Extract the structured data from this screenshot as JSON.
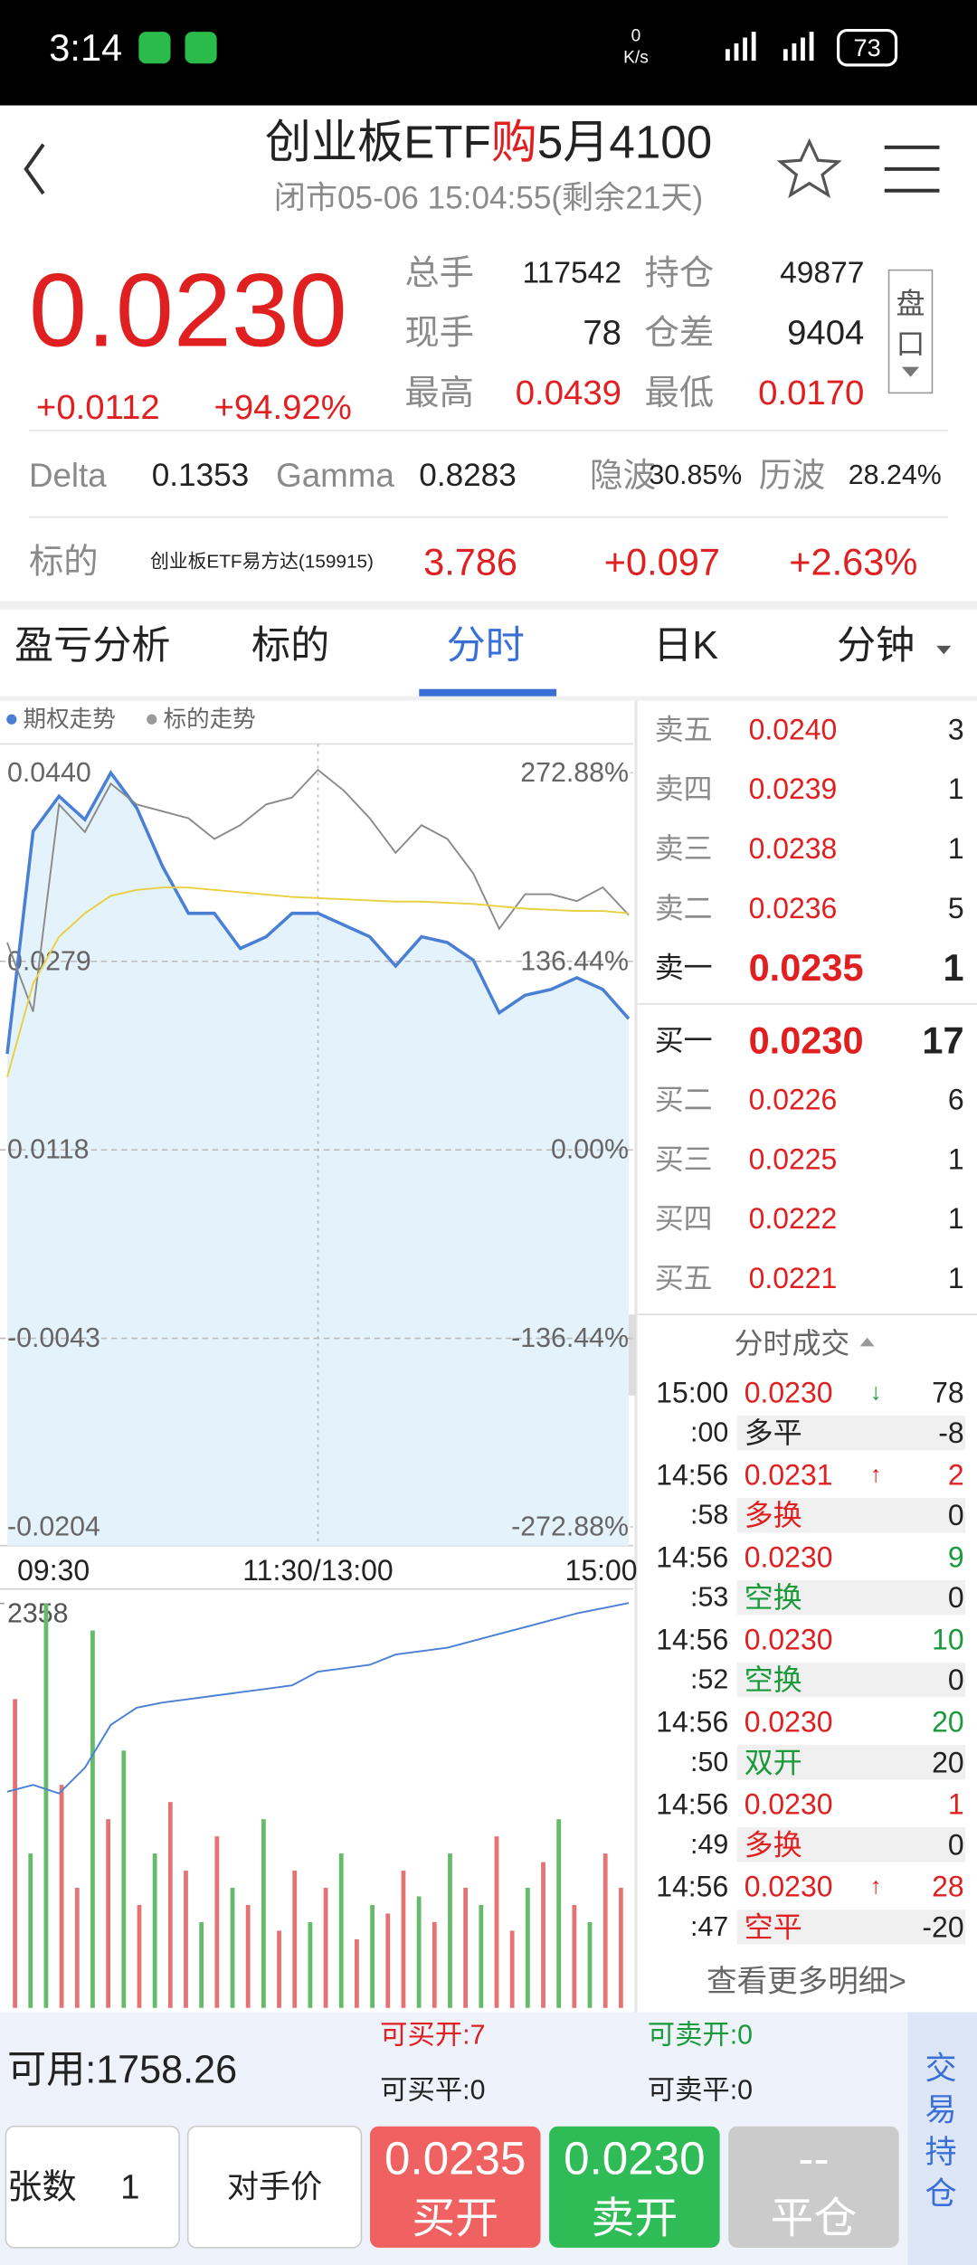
{
  "status": {
    "time": "3:14",
    "speed": "0",
    "speed_unit": "K/s",
    "battery": "73"
  },
  "header": {
    "title": [
      "创业板ETF",
      "购",
      "5月4100"
    ],
    "subtitle": "闭市05-06  15:04:55(剩余21天)"
  },
  "quote": {
    "price": "0.0230",
    "change": "+0.0112",
    "pct": "+94.92%",
    "stats": [
      [
        "总手",
        "117542"
      ],
      [
        "持仓",
        "49877"
      ],
      [
        "现手",
        "78"
      ],
      [
        "仓差",
        "9404"
      ],
      [
        "最高",
        "0.0439"
      ],
      [
        "最低",
        "0.0170"
      ]
    ],
    "side_button": [
      "盘",
      "口"
    ]
  },
  "greeks": [
    [
      "Delta",
      "0.1353"
    ],
    [
      "Gamma",
      "0.8283"
    ],
    [
      "隐波",
      "30.85%"
    ],
    [
      "历波",
      "28.24%"
    ]
  ],
  "underlying": {
    "label": "标的",
    "name": "创业板ETF易方达(159915)",
    "price": "3.786",
    "change": "+0.097",
    "pct": "+2.63%"
  },
  "tabs": [
    "盈亏分析",
    "标的",
    "分时",
    "日K",
    "分钟"
  ],
  "chart_data": [
    {
      "type": "line",
      "categories": [
        "09:30",
        null,
        null,
        null,
        null,
        null,
        null,
        null,
        null,
        null,
        null,
        null,
        "11:30/13:00",
        null,
        null,
        null,
        null,
        null,
        null,
        null,
        null,
        null,
        null,
        null,
        "15:00"
      ],
      "ylim": [
        -0.0204,
        0.044
      ],
      "yticks": [
        {
          "value": -0.0204,
          "label": "-0.0204"
        },
        {
          "value": -0.0043,
          "label": "-0.0043"
        },
        {
          "value": 0.0118,
          "label": "0.0118"
        },
        {
          "value": 0.0279,
          "label": "0.0279"
        },
        {
          "value": 0.044,
          "label": "0.0440"
        }
      ],
      "y2lim": [
        -272.88,
        272.88
      ],
      "y2ticks": [
        {
          "value": -272.88,
          "label": "-272.88%"
        },
        {
          "value": -136.44,
          "label": "-136.44%"
        },
        {
          "value": 0,
          "label": "0.00%"
        },
        {
          "value": 136.44,
          "label": "136.44%"
        },
        {
          "value": 272.88,
          "label": "272.88%"
        }
      ],
      "series": [
        {
          "name": "期权走势",
          "color": "#4a7fd6",
          "values": [
            0.02,
            0.039,
            0.042,
            0.04,
            0.044,
            0.041,
            0.036,
            0.032,
            0.032,
            0.029,
            0.03,
            0.032,
            0.032,
            0.031,
            0.03,
            0.0275,
            0.03,
            0.0295,
            0.028,
            0.0235,
            0.025,
            0.0255,
            0.0265,
            0.0255,
            0.023
          ]
        },
        {
          "name": "标的走势",
          "color": "#8a8a8a",
          "axis": "y2",
          "values": [
            150,
            100,
            250,
            230,
            265,
            250,
            245,
            240,
            225,
            235,
            250,
            255,
            275,
            260,
            240,
            215,
            235,
            225,
            200,
            160,
            185,
            185,
            180,
            190,
            170
          ]
        },
        {
          "color": "#e8d040",
          "values": [
            0.018,
            0.026,
            0.03,
            0.032,
            0.0335,
            0.034,
            0.0342,
            0.0342,
            0.034,
            0.0338,
            0.0336,
            0.0334,
            0.0333,
            0.0332,
            0.0331,
            0.033,
            0.033,
            0.0329,
            0.0328,
            0.0326,
            0.0324,
            0.0323,
            0.0322,
            0.0322,
            0.032
          ]
        }
      ]
    },
    {
      "type": "bar",
      "ylim": [
        0,
        2358
      ],
      "yticks": [
        {
          "value": 2358,
          "label": "2358"
        }
      ],
      "color_up": "#e57373",
      "color_down": "#66bb6a",
      "values": [
        1800,
        900,
        2358,
        1300,
        700,
        2200,
        1100,
        1500,
        600,
        900,
        1200,
        800,
        500,
        1000,
        700,
        600,
        1100,
        450,
        800,
        500,
        700,
        900,
        400,
        600,
        550,
        800,
        650,
        500,
        900,
        700,
        600,
        1000,
        450,
        700,
        850,
        1100,
        600,
        500,
        900,
        700
      ],
      "up": [
        true,
        false,
        false,
        true,
        true,
        false,
        true,
        false,
        true,
        false,
        true,
        true,
        false,
        true,
        false,
        true,
        false,
        true,
        true,
        false,
        true,
        false,
        true,
        false,
        true,
        true,
        false,
        true,
        false,
        true,
        false,
        true,
        true,
        false,
        true,
        false,
        true,
        false,
        true,
        true
      ],
      "line": {
        "color": "#4a7fd6",
        "values": [
          1260,
          1300,
          1250,
          1400,
          1650,
          1750,
          1780,
          1800,
          1820,
          1840,
          1860,
          1880,
          1960,
          1980,
          2000,
          2060,
          2080,
          2100,
          2140,
          2180,
          2220,
          2260,
          2300,
          2330,
          2360
        ]
      }
    }
  ],
  "order_book": {
    "asks": [
      [
        "卖五",
        "0.0240",
        "3"
      ],
      [
        "卖四",
        "0.0239",
        "1"
      ],
      [
        "卖三",
        "0.0238",
        "1"
      ],
      [
        "卖二",
        "0.0236",
        "5"
      ],
      [
        "卖一",
        "0.0235",
        "1"
      ]
    ],
    "bids": [
      [
        "买一",
        "0.0230",
        "17"
      ],
      [
        "买二",
        "0.0226",
        "6"
      ],
      [
        "买三",
        "0.0225",
        "1"
      ],
      [
        "买四",
        "0.0222",
        "1"
      ],
      [
        "买五",
        "0.0221",
        "1"
      ]
    ]
  },
  "trades": {
    "title": "分时成交",
    "more": "查看更多明细>",
    "rows": [
      {
        "time": "15:00",
        "price": "0.0230",
        "dir": "↓",
        "dir_color": "#1a9a3a",
        "vol": "78",
        "vol_color": "#222",
        "sec": ":00",
        "kind": "多平",
        "kind_color": "#222",
        "diff": "-8"
      },
      {
        "time": "14:56",
        "price": "0.0231",
        "dir": "↑",
        "dir_color": "#e02020",
        "vol": "2",
        "vol_color": "#e02020",
        "sec": ":58",
        "kind": "多换",
        "kind_color": "#e02020",
        "diff": "0"
      },
      {
        "time": "14:56",
        "price": "0.0230",
        "vol": "9",
        "vol_color": "#1a9a3a",
        "sec": ":53",
        "kind": "空换",
        "kind_color": "#1a9a3a",
        "diff": "0"
      },
      {
        "time": "14:56",
        "price": "0.0230",
        "vol": "10",
        "vol_color": "#1a9a3a",
        "sec": ":52",
        "kind": "空换",
        "kind_color": "#1a9a3a",
        "diff": "0"
      },
      {
        "time": "14:56",
        "price": "0.0230",
        "vol": "20",
        "vol_color": "#1a9a3a",
        "sec": ":50",
        "kind": "双开",
        "kind_color": "#1a9a3a",
        "diff": "20"
      },
      {
        "time": "14:56",
        "price": "0.0230",
        "vol": "1",
        "vol_color": "#e02020",
        "sec": ":49",
        "kind": "多换",
        "kind_color": "#e02020",
        "diff": "0"
      },
      {
        "time": "14:56",
        "price": "0.0230",
        "dir": "↑",
        "dir_color": "#e02020",
        "vol": "28",
        "vol_color": "#e02020",
        "sec": ":47",
        "kind": "空平",
        "kind_color": "#e02020",
        "diff": "-20"
      }
    ]
  },
  "account": {
    "available": "可用:1758.26",
    "buy_open": "可买开:7",
    "buy_close": "可买平:0",
    "sell_open": "可卖开:0",
    "sell_close": "可卖平:0",
    "side_tab": [
      "交",
      "易",
      "持",
      "仓"
    ]
  },
  "controls": {
    "qty_label": "张数",
    "qty": "1",
    "price_mode": "对手价",
    "buttons": [
      {
        "price": "0.0235",
        "action": "买开",
        "color": "#f06262"
      },
      {
        "price": "0.0230",
        "action": "卖开",
        "color": "#2fbb55"
      },
      {
        "price": "--",
        "action": "平仓",
        "color": "#cbcbcb"
      }
    ]
  }
}
